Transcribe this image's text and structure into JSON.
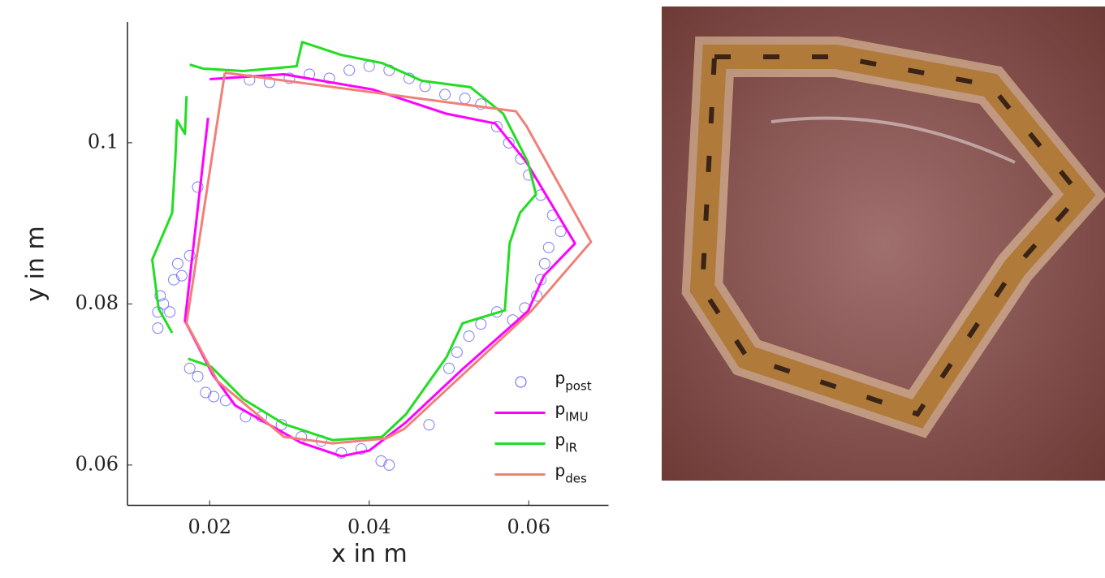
{
  "chart_data": {
    "type": "line",
    "x_label": "x in m",
    "y_label": "y in m",
    "xlim": [
      0.01,
      0.07
    ],
    "xticks": [
      0.02,
      0.04,
      0.06
    ],
    "ylim": [
      0.055,
      0.115
    ],
    "yticks": [
      0.06,
      0.08,
      0.1
    ],
    "legend": "lower right",
    "series": [
      {
        "name": "p",
        "subscript": "post",
        "type": "scatter",
        "color": "#5a5aff",
        "x": [
          0.0135,
          0.0135,
          0.0138,
          0.0142,
          0.015,
          0.0155,
          0.016,
          0.0165,
          0.0175,
          0.0185,
          0.0175,
          0.0185,
          0.0195,
          0.0205,
          0.022,
          0.0245,
          0.0265,
          0.029,
          0.0315,
          0.034,
          0.0365,
          0.039,
          0.0415,
          0.0425,
          0.0475,
          0.05,
          0.051,
          0.0525,
          0.054,
          0.056,
          0.058,
          0.0595,
          0.061,
          0.0615,
          0.062,
          0.0625,
          0.064,
          0.063,
          0.0615,
          0.06,
          0.059,
          0.0575,
          0.056,
          0.054,
          0.052,
          0.0495,
          0.047,
          0.045,
          0.0425,
          0.04,
          0.0375,
          0.035,
          0.0325,
          0.03,
          0.0275,
          0.025
        ],
        "values": [
          0.077,
          0.079,
          0.081,
          0.08,
          0.079,
          0.083,
          0.085,
          0.0835,
          0.086,
          0.0945,
          0.072,
          0.071,
          0.069,
          0.0685,
          0.068,
          0.066,
          0.066,
          0.065,
          0.0635,
          0.063,
          0.0615,
          0.062,
          0.0605,
          0.06,
          0.065,
          0.072,
          0.074,
          0.076,
          0.0775,
          0.079,
          0.078,
          0.0795,
          0.081,
          0.083,
          0.085,
          0.087,
          0.089,
          0.091,
          0.0935,
          0.096,
          0.098,
          0.1,
          0.102,
          0.1048,
          0.1055,
          0.106,
          0.107,
          0.108,
          0.109,
          0.1095,
          0.109,
          0.108,
          0.1085,
          0.108,
          0.1075,
          0.1078
        ]
      },
      {
        "name": "p",
        "subscript": "IMU",
        "type": "line",
        "color": "#ff00ff",
        "x": [
          0.0198,
          0.0169,
          0.0204,
          0.0232,
          0.0314,
          0.0365,
          0.04,
          0.0446,
          0.0517,
          0.0599,
          0.0619,
          0.0658,
          0.0629,
          0.0597,
          0.0558,
          0.0497,
          0.0405,
          0.0293,
          0.02
        ],
        "values": [
          0.1031,
          0.0779,
          0.0712,
          0.0674,
          0.0628,
          0.0611,
          0.0618,
          0.0653,
          0.0719,
          0.0791,
          0.0835,
          0.0875,
          0.0923,
          0.0976,
          0.1024,
          0.1036,
          0.1066,
          0.1085,
          0.1079
        ]
      },
      {
        "name": "p",
        "subscript": "IR",
        "type": "line",
        "color": "#22dd22",
        "x": [
          0.0171,
          0.0169,
          0.0159,
          0.0157,
          0.0153,
          0.0128,
          0.0136,
          0.0153,
          null,
          0.0173,
          0.0202,
          0.0242,
          0.0293,
          0.0354,
          0.0416,
          0.0446,
          0.0497,
          0.0517,
          0.057,
          0.0576,
          0.0589,
          0.0609,
          0.0599,
          0.0568,
          0.0527,
          0.0466,
          0.0416,
          0.0365,
          0.0316,
          0.0309,
          0.0242,
          0.0192,
          0.0175
        ],
        "values": [
          0.1058,
          0.1011,
          0.1028,
          0.0981,
          0.0913,
          0.0855,
          0.0794,
          0.0764,
          null,
          0.0732,
          0.0722,
          0.0682,
          0.0651,
          0.0631,
          0.0635,
          0.0663,
          0.0734,
          0.0776,
          0.0792,
          0.0875,
          0.0913,
          0.0936,
          0.0976,
          0.1036,
          0.1069,
          0.1077,
          0.1099,
          0.1109,
          0.1125,
          0.1095,
          0.1089,
          0.1092,
          0.1097
        ]
      },
      {
        "name": "p",
        "subscript": "des",
        "type": "line",
        "color": "#f08078",
        "x": [
          0.0219,
          0.0584,
          0.0597,
          0.0678,
          0.0603,
          0.0444,
          0.0421,
          0.0354,
          0.0293,
          0.021,
          0.0171,
          0.0219
        ],
        "values": [
          0.1087,
          0.1039,
          0.1021,
          0.0877,
          0.0791,
          0.0645,
          0.0633,
          0.0627,
          0.0635,
          0.0704,
          0.0776,
          0.1087
        ]
      }
    ]
  }
}
